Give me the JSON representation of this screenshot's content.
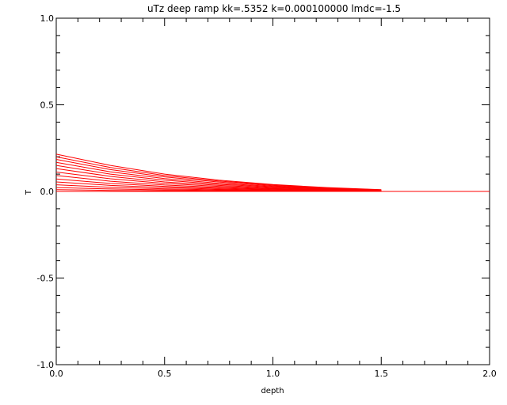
{
  "chart_data": {
    "type": "line",
    "title": "uTz deep ramp kk=.5352 k=0.000100000 lmdc=-1.5",
    "xlabel": "depth",
    "ylabel": "T",
    "xlim": [
      0.0,
      2.0
    ],
    "ylim": [
      -1.0,
      1.0
    ],
    "x_ticks": [
      0.0,
      0.5,
      1.0,
      1.5,
      2.0
    ],
    "x_tick_labels": [
      "0.0",
      "0.5",
      "1.0",
      "1.5",
      "2.0"
    ],
    "y_ticks": [
      -1.0,
      -0.5,
      0.0,
      0.5,
      1.0
    ],
    "y_tick_labels": [
      "-1.0",
      "-0.5",
      "0.0",
      "0.5",
      "1.0"
    ],
    "grid": false,
    "line_color": "#ff0000",
    "series": [
      {
        "x": [
          0.0,
          0.25,
          0.5,
          0.75,
          1.0,
          1.25,
          1.5
        ],
        "y": [
          0.215,
          0.15,
          0.1,
          0.065,
          0.04,
          0.022,
          0.01
        ]
      },
      {
        "x": [
          0.0,
          0.25,
          0.5,
          0.75,
          1.0,
          1.25,
          1.5
        ],
        "y": [
          0.2,
          0.138,
          0.092,
          0.06,
          0.037,
          0.02,
          0.009
        ]
      },
      {
        "x": [
          0.0,
          0.25,
          0.5,
          0.75,
          1.0,
          1.25,
          1.5
        ],
        "y": [
          0.185,
          0.126,
          0.084,
          0.054,
          0.033,
          0.018,
          0.008
        ]
      },
      {
        "x": [
          0.0,
          0.25,
          0.5,
          0.75,
          1.0,
          1.25,
          1.5
        ],
        "y": [
          0.168,
          0.113,
          0.074,
          0.047,
          0.029,
          0.016,
          0.007
        ]
      },
      {
        "x": [
          0.0,
          0.25,
          0.5,
          0.75,
          1.0,
          1.25,
          1.5
        ],
        "y": [
          0.15,
          0.1,
          0.065,
          0.041,
          0.025,
          0.014,
          0.006
        ]
      },
      {
        "x": [
          0.0,
          0.25,
          0.5,
          0.75,
          1.0,
          1.25,
          1.5
        ],
        "y": [
          0.132,
          0.087,
          0.055,
          0.035,
          0.021,
          0.012,
          0.005
        ]
      },
      {
        "x": [
          0.0,
          0.25,
          0.5,
          0.75,
          1.0,
          1.25,
          1.5
        ],
        "y": [
          0.112,
          0.073,
          0.046,
          0.029,
          0.017,
          0.01,
          0.004
        ]
      },
      {
        "x": [
          0.0,
          0.25,
          0.5,
          0.75,
          1.0,
          1.25,
          1.5
        ],
        "y": [
          0.092,
          0.059,
          0.037,
          0.023,
          0.014,
          0.008,
          0.003
        ]
      },
      {
        "x": [
          0.0,
          0.25,
          0.5,
          0.75,
          1.0,
          1.25,
          1.5
        ],
        "y": [
          0.072,
          0.046,
          0.029,
          0.018,
          0.011,
          0.006,
          0.003
        ]
      },
      {
        "x": [
          0.0,
          0.25,
          0.5,
          0.75,
          1.0,
          1.25,
          1.5
        ],
        "y": [
          0.055,
          0.035,
          0.022,
          0.013,
          0.008,
          0.005,
          0.002
        ]
      },
      {
        "x": [
          0.0,
          0.25,
          0.5,
          0.75,
          1.0,
          1.25,
          1.5
        ],
        "y": [
          0.038,
          0.024,
          0.015,
          0.009,
          0.006,
          0.003,
          0.001
        ]
      },
      {
        "x": [
          0.0,
          0.25,
          0.5,
          0.75,
          1.0,
          1.25,
          1.5
        ],
        "y": [
          0.022,
          0.014,
          0.009,
          0.005,
          0.003,
          0.002,
          0.001
        ]
      },
      {
        "x": [
          0.0,
          0.25,
          0.5,
          0.75,
          1.0,
          1.25,
          1.5
        ],
        "y": [
          0.01,
          0.006,
          0.004,
          0.002,
          0.001,
          0.001,
          0.0
        ]
      },
      {
        "x": [
          0.0,
          0.5,
          1.0,
          1.5,
          2.0
        ],
        "y": [
          0.0,
          0.0,
          0.0,
          0.0,
          0.0
        ]
      }
    ]
  }
}
